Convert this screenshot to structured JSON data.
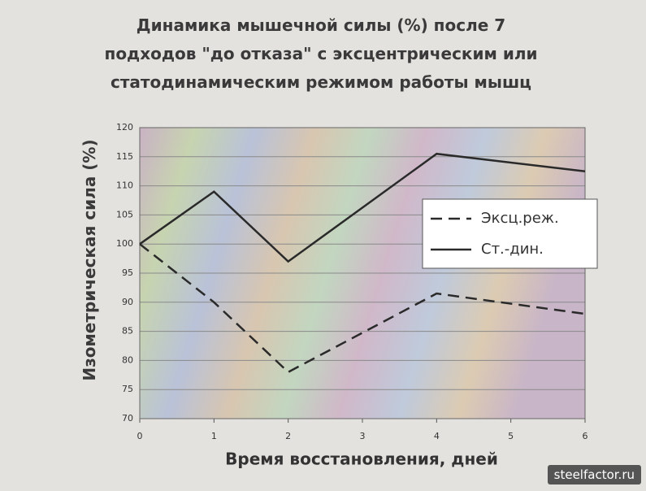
{
  "chart_data": {
    "type": "line",
    "title": "Динамика мышечной силы (%) после 7 подходов \"до отказа\" с эксцентрическим или статодинамическим режимом работы мышц",
    "x_label": "Время восстановления, дней",
    "y_label": "Изометрическая сила (%)",
    "x": [
      0,
      1,
      2,
      4,
      6
    ],
    "series": [
      {
        "name": "Эксц.реж.",
        "color": "#2a2a2a",
        "dash": true,
        "values": [
          100,
          90,
          78,
          91.5,
          88
        ]
      },
      {
        "name": "Ст.-дин.",
        "color": "#2a2a2a",
        "dash": false,
        "values": [
          100,
          109,
          97,
          115.5,
          112.5
        ]
      }
    ],
    "xlim": [
      0,
      6
    ],
    "xticks": [
      0,
      1,
      2,
      3,
      4,
      5,
      6
    ],
    "ylim": [
      70,
      120
    ],
    "yticks": [
      70,
      75,
      80,
      85,
      90,
      95,
      100,
      105,
      110,
      115,
      120
    ],
    "grid": true,
    "legend": "right",
    "watermark": "steelfactor.ru"
  }
}
